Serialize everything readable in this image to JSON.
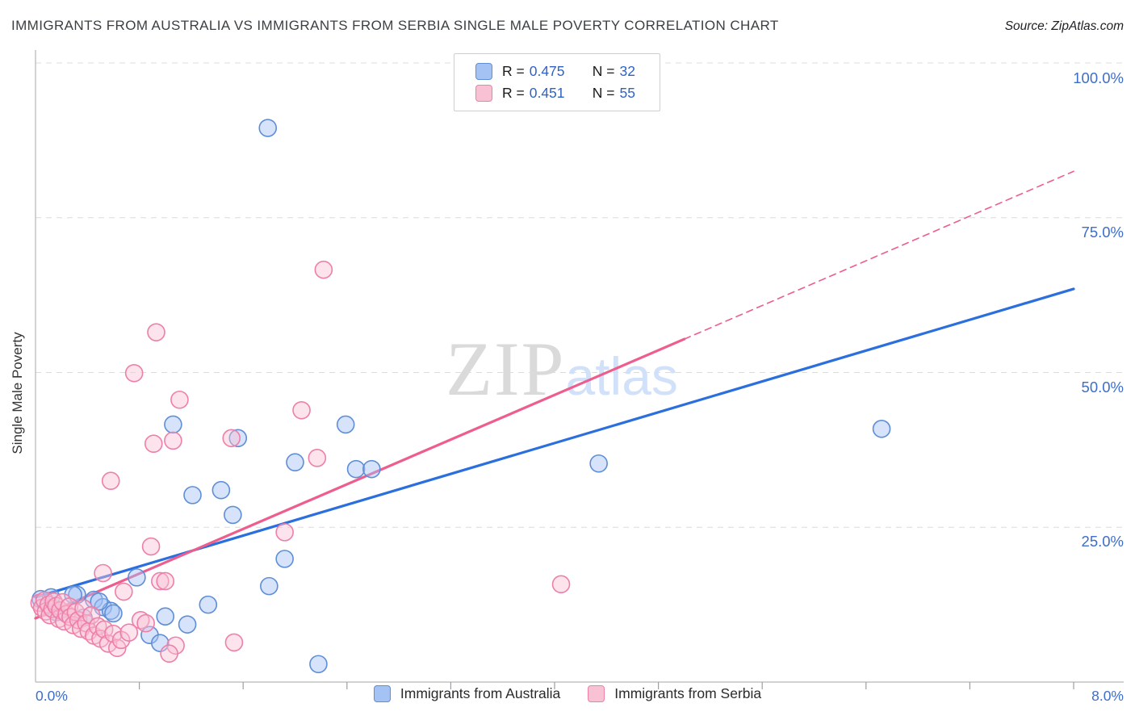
{
  "source": "Source: ZipAtlas.com",
  "legend_box": {
    "rows": [
      {
        "r_label": "R =",
        "r_value": "0.475",
        "n_label": "N =",
        "n_value": "32"
      },
      {
        "r_label": "R =",
        "r_value": "0.451",
        "n_label": "N =",
        "n_value": "55"
      }
    ]
  },
  "watermark": {
    "zip": "ZIP",
    "atlas": "atlas"
  },
  "colors": {
    "axis_label_blue": "#3d6ec9",
    "australia_trend": "#2b6fde",
    "serbia_trend": "#ed5e8e",
    "gridline": "#dcdcdc"
  },
  "chart_data": {
    "type": "scatter",
    "title": "IMMIGRANTS FROM AUSTRALIA VS IMMIGRANTS FROM SERBIA SINGLE MALE POVERTY CORRELATION CHART",
    "xlabel": "",
    "ylabel": "Single Male Poverty",
    "xlim": [
      0,
      8
    ],
    "ylim": [
      0,
      100
    ],
    "x_tick_labels": [
      "0.0%",
      "8.0%"
    ],
    "y_gridlines": [
      100,
      75,
      50,
      25
    ],
    "y_tick_labels": [
      "100.0%",
      "75.0%",
      "50.0%",
      "25.0%"
    ],
    "grid": "dashed-horizontal",
    "legend_position": "bottom-center",
    "series": [
      {
        "id": "australia",
        "name": "Immigrants from Australia",
        "r": 0.475,
        "n": 32,
        "fill": "#a4c2f4",
        "stroke": "#5e8ed6",
        "points": [
          [
            1.79,
            89.5
          ],
          [
            1.06,
            41.6
          ],
          [
            1.56,
            39.4
          ],
          [
            2.39,
            41.6
          ],
          [
            2.0,
            35.5
          ],
          [
            2.47,
            34.4
          ],
          [
            2.59,
            34.4
          ],
          [
            4.34,
            35.3
          ],
          [
            6.52,
            40.9
          ],
          [
            1.21,
            30.2
          ],
          [
            1.43,
            31.0
          ],
          [
            1.52,
            27.0
          ],
          [
            1.92,
            19.9
          ],
          [
            1.8,
            15.5
          ],
          [
            2.18,
            2.9
          ],
          [
            0.78,
            16.9
          ],
          [
            1.33,
            12.5
          ],
          [
            1.0,
            10.6
          ],
          [
            1.17,
            9.3
          ],
          [
            0.88,
            7.6
          ],
          [
            0.96,
            6.3
          ],
          [
            0.32,
            14.1
          ],
          [
            0.04,
            13.4
          ],
          [
            0.12,
            13.7
          ],
          [
            0.29,
            14.1
          ],
          [
            0.16,
            11.3
          ],
          [
            0.45,
            13.3
          ],
          [
            0.52,
            12.1
          ],
          [
            0.58,
            11.5
          ],
          [
            0.37,
            10.4
          ],
          [
            0.49,
            13.0
          ],
          [
            0.6,
            11.1
          ]
        ]
      },
      {
        "id": "serbia",
        "name": "Immigrants from Serbia",
        "r": 0.451,
        "n": 55,
        "fill": "#f9c2d4",
        "stroke": "#ee7fa8",
        "points": [
          [
            2.22,
            66.6
          ],
          [
            0.93,
            56.5
          ],
          [
            0.76,
            49.9
          ],
          [
            1.11,
            45.6
          ],
          [
            0.91,
            38.5
          ],
          [
            1.06,
            39.0
          ],
          [
            1.51,
            39.4
          ],
          [
            2.05,
            43.9
          ],
          [
            2.17,
            36.2
          ],
          [
            0.58,
            32.5
          ],
          [
            1.92,
            24.2
          ],
          [
            0.89,
            21.9
          ],
          [
            4.05,
            15.8
          ],
          [
            1.53,
            6.4
          ],
          [
            0.52,
            17.6
          ],
          [
            0.68,
            14.6
          ],
          [
            0.96,
            16.3
          ],
          [
            1.0,
            16.3
          ],
          [
            0.81,
            10.0
          ],
          [
            0.85,
            9.5
          ],
          [
            1.08,
            5.9
          ],
          [
            1.03,
            4.6
          ],
          [
            0.03,
            12.8
          ],
          [
            0.05,
            12.0
          ],
          [
            0.07,
            13.2
          ],
          [
            0.08,
            11.4
          ],
          [
            0.1,
            12.5
          ],
          [
            0.11,
            10.8
          ],
          [
            0.13,
            11.8
          ],
          [
            0.14,
            13.0
          ],
          [
            0.16,
            12.3
          ],
          [
            0.18,
            10.2
          ],
          [
            0.19,
            11.6
          ],
          [
            0.21,
            12.9
          ],
          [
            0.22,
            9.8
          ],
          [
            0.24,
            11.0
          ],
          [
            0.26,
            12.2
          ],
          [
            0.27,
            10.5
          ],
          [
            0.29,
            9.2
          ],
          [
            0.31,
            11.3
          ],
          [
            0.33,
            10.0
          ],
          [
            0.35,
            8.6
          ],
          [
            0.37,
            11.9
          ],
          [
            0.39,
            9.5
          ],
          [
            0.41,
            8.2
          ],
          [
            0.43,
            10.8
          ],
          [
            0.45,
            7.5
          ],
          [
            0.48,
            9.0
          ],
          [
            0.5,
            7.0
          ],
          [
            0.53,
            8.5
          ],
          [
            0.56,
            6.2
          ],
          [
            0.6,
            7.8
          ],
          [
            0.63,
            5.5
          ],
          [
            0.66,
            6.8
          ],
          [
            0.72,
            8.0
          ]
        ]
      }
    ],
    "trendlines": [
      {
        "series": "australia",
        "color": "#2b6fde",
        "x1": 0,
        "y1": 13.7,
        "x2": 8,
        "y2": 63.5,
        "dash": "solid"
      },
      {
        "series": "serbia",
        "color": "#ed5e8e",
        "x1": 0,
        "y1": 10.3,
        "x2": 5.0,
        "y2": 55.4,
        "dash": "solid"
      },
      {
        "series": "serbia",
        "color": "#ed5e8e",
        "x1": 5.0,
        "y1": 55.4,
        "x2": 8,
        "y2": 82.5,
        "dash": "dashed"
      }
    ]
  }
}
